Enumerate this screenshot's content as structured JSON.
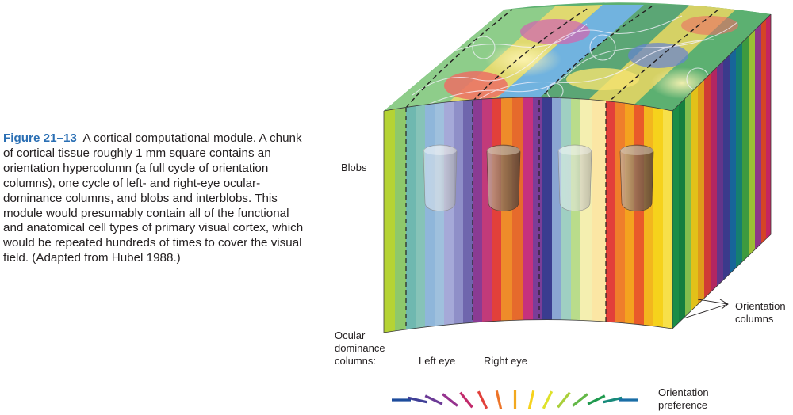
{
  "caption": {
    "figure_label": "Figure 21–13",
    "title": "A cortical computational module.",
    "body": "A chunk of cortical tissue roughly 1 mm square contains an orientation hypercolumn (a full cycle of orientation columns), one cycle of left- and right-eye ocular-dominance columns, and blobs and interblobs. This module would presumably contain all of the functional and anatomical cell types of primary visual cortex, which would be repeated hundreds of times to cover the visual field. (Adapted from Hubel 1988.)"
  },
  "labels": {
    "blobs": "Blobs",
    "ocular_dominance": [
      "Ocular",
      "dominance",
      "columns:"
    ],
    "left_eye": "Left eye",
    "right_eye": "Right eye",
    "orientation_columns": [
      "Orientation",
      "columns"
    ],
    "orientation_preference": [
      "Orientation",
      "preference"
    ]
  },
  "colors": {
    "caption_label": "#2a6fb4",
    "front_stripes": [
      "#b5d334",
      "#e8e022",
      "#f4c21f",
      "#ee8c2a",
      "#e84a2a",
      "#d6296a",
      "#9a3b95",
      "#6d5fad",
      "#7c8fc8",
      "#8fb6da",
      "#9fcfc2",
      "#7fc16a",
      "#43a845",
      "#168a45"
    ],
    "orientation_bars": [
      "#1d4c9c",
      "#3f3f97",
      "#6b3a96",
      "#96338f",
      "#c22a6b",
      "#e2403a",
      "#ed7428",
      "#f2a81e",
      "#f6d21c",
      "#dfe22a",
      "#a9cf3a",
      "#63b847",
      "#1f9a4e",
      "#178a7a",
      "#1a6ea6"
    ]
  }
}
